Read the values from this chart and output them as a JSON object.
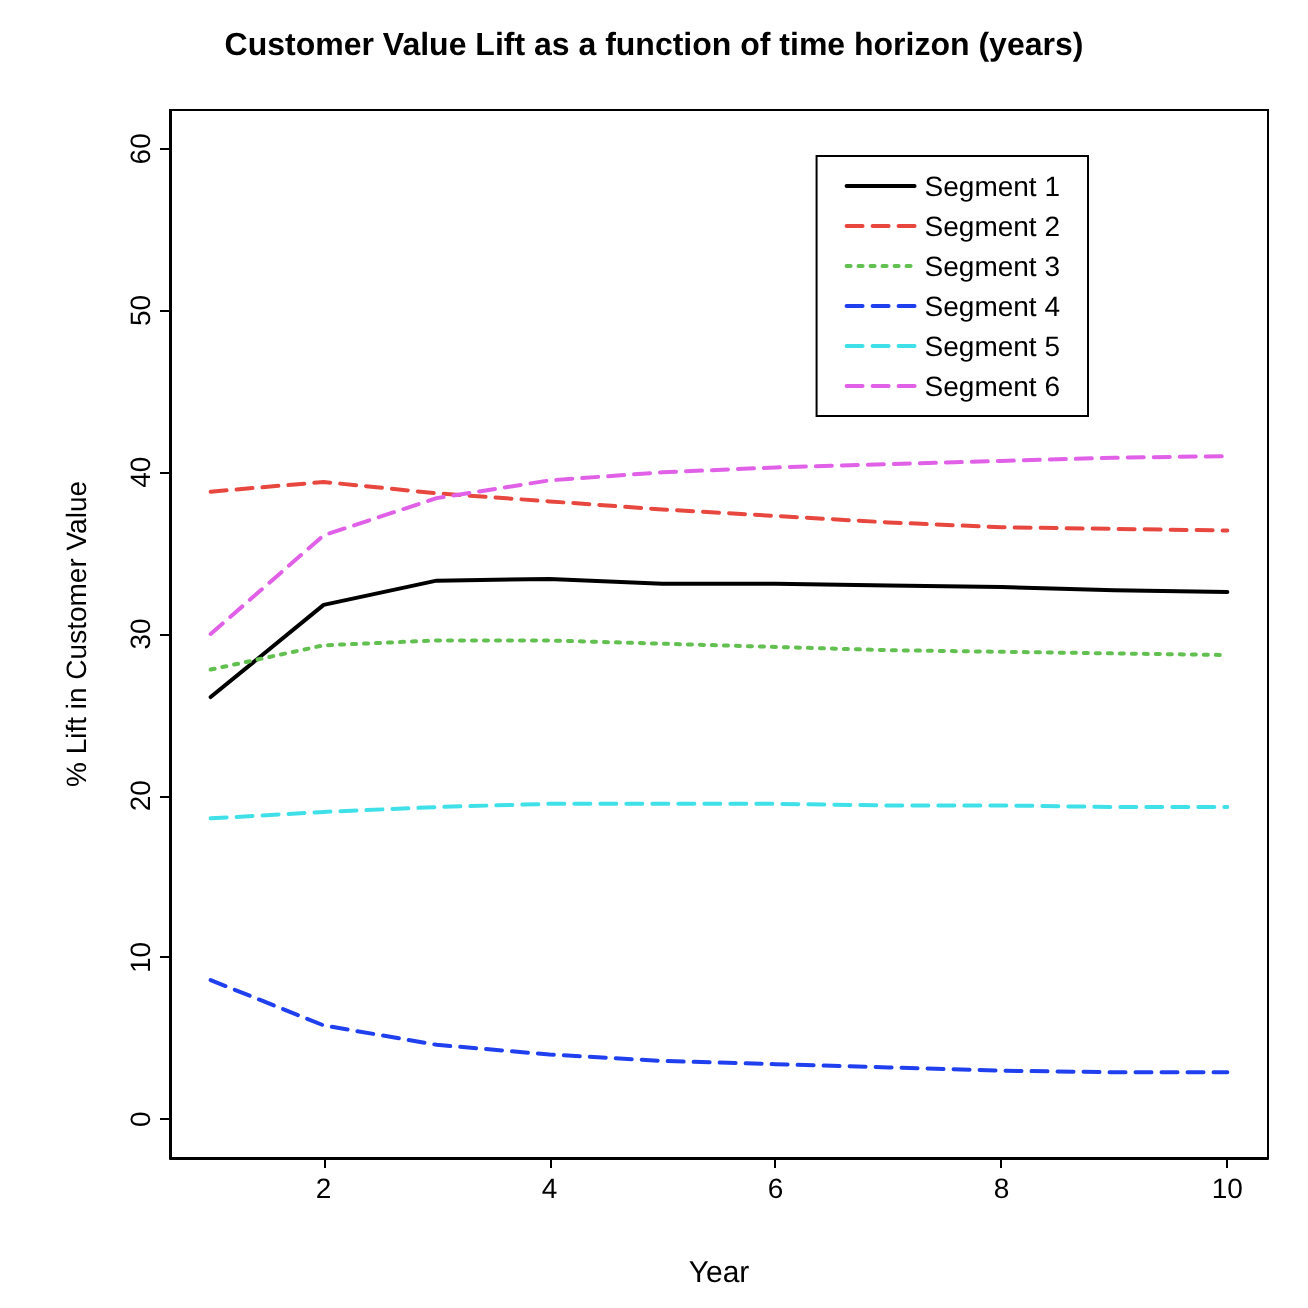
{
  "chart_data": {
    "type": "line",
    "title": "Customer Value Lift as a function of time horizon (years)",
    "xlabel": "Year",
    "ylabel": "% Lift in Customer Value",
    "x": [
      1,
      2,
      3,
      4,
      5,
      6,
      7,
      8,
      9,
      10
    ],
    "series": [
      {
        "name": "Segment 1",
        "color": "#000000",
        "line_style": "solid",
        "values": [
          26.1,
          31.8,
          33.3,
          33.4,
          33.1,
          33.1,
          33.0,
          32.9,
          32.7,
          32.6
        ]
      },
      {
        "name": "Segment 2",
        "color": "#e8473f",
        "line_style": "dashed",
        "values": [
          38.8,
          39.4,
          38.7,
          38.2,
          37.7,
          37.3,
          36.9,
          36.6,
          36.5,
          36.4
        ]
      },
      {
        "name": "Segment 3",
        "color": "#61c04f",
        "line_style": "dotted",
        "values": [
          27.8,
          29.3,
          29.6,
          29.6,
          29.4,
          29.2,
          29.0,
          28.9,
          28.8,
          28.7
        ]
      },
      {
        "name": "Segment 4",
        "color": "#2040f0",
        "line_style": "dashed",
        "values": [
          8.6,
          5.8,
          4.6,
          4.0,
          3.6,
          3.4,
          3.2,
          3.0,
          2.9,
          2.9
        ]
      },
      {
        "name": "Segment 5",
        "color": "#40e0e8",
        "line_style": "dashed",
        "values": [
          18.6,
          19.0,
          19.3,
          19.5,
          19.5,
          19.5,
          19.4,
          19.4,
          19.3,
          19.3
        ]
      },
      {
        "name": "Segment 6",
        "color": "#e060e8",
        "line_style": "dashed",
        "values": [
          30.0,
          36.1,
          38.4,
          39.5,
          40.0,
          40.3,
          40.5,
          40.7,
          40.9,
          41.0
        ]
      }
    ],
    "xlim": [
      0.64,
      10.36
    ],
    "xticks": [
      2,
      4,
      6,
      8,
      10
    ],
    "ylim": [
      -2.4,
      62.4
    ],
    "yticks": [
      0,
      10,
      20,
      30,
      40,
      50,
      60
    ],
    "legend": "top right",
    "marker": "none",
    "grid": false
  }
}
